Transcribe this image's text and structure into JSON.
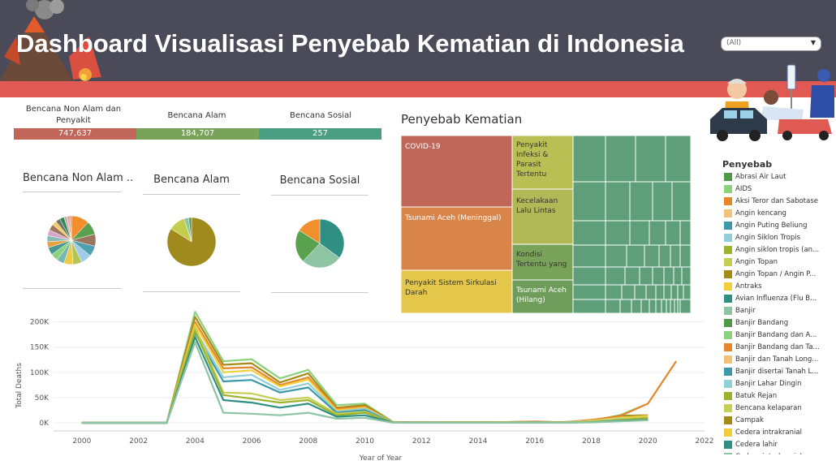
{
  "header": {
    "title": "Dashboard Visualisasi Penyebab Kematian di Indonesia",
    "filter_value": "(All)"
  },
  "kpis": [
    {
      "label": "Bencana Non Alam dan Penyakit",
      "value": "747,637",
      "color": "#c0675a"
    },
    {
      "label": "Bencana Alam",
      "value": "184,707",
      "color": "#7aa35a"
    },
    {
      "label": "Bencana Sosial",
      "value": "257",
      "color": "#4a9e82"
    }
  ],
  "pies": [
    {
      "title": "Bencana Non Alam ..",
      "slices": [
        12,
        9,
        8,
        7,
        7,
        6,
        6,
        5,
        5,
        5,
        4,
        4,
        4,
        4,
        3,
        3,
        3,
        2,
        2,
        1
      ],
      "colors": [
        "#f28e2b",
        "#59a14f",
        "#9c755f",
        "#4e9fb0",
        "#a0cbe8",
        "#b5c45a",
        "#edc948",
        "#76b7b2",
        "#8cd17d",
        "#499894",
        "#e6a23c",
        "#86bcb6",
        "#d4a6c8",
        "#9d7660",
        "#f1ce63",
        "#79706e",
        "#2e8b57",
        "#bab0ac",
        "#ff9d9a",
        "#d37295"
      ]
    },
    {
      "title": "Bencana Alam",
      "slices": [
        84,
        11,
        3,
        2
      ],
      "colors": [
        "#a08a1e",
        "#c3cf4c",
        "#8cc4a4",
        "#59a14f"
      ]
    },
    {
      "title": "Bencana Sosial",
      "slices": [
        35,
        27,
        22,
        16
      ],
      "colors": [
        "#2e8f82",
        "#8cc4a4",
        "#59a14f",
        "#f28e2b"
      ]
    }
  ],
  "treemap": {
    "title": "Penyebab Kematian",
    "labels": {
      "covid": "COVID-19",
      "tsunami": "Tsunami Aceh (Meninggal)",
      "sirkulasi": "Penyakit Sistem Sirkulasi Darah",
      "infeksi": "Penyakit Infeksi & Parasit Tertentu",
      "kecelakaan": "Kecelakaan Lalu Lintas",
      "kondisi": "Kondisi Tertentu yang",
      "hilang": "Tsunami Aceh (Hilang)"
    },
    "colors": {
      "covid": "#c0675a",
      "tsunami": "#d9854a",
      "sirkulasi": "#e3c64a",
      "infeksi": "#b9bf52",
      "kecelakaan": "#b0b955",
      "kondisi": "#7aa35a",
      "hilang": "#6e9c5a",
      "rest": "#5e9e78"
    }
  },
  "legend": {
    "title": "Penyebab",
    "items": [
      {
        "label": "Abrasi Air Laut",
        "color": "#4e9a45"
      },
      {
        "label": "AIDS",
        "color": "#8cd17d"
      },
      {
        "label": "Aksi Teror dan Sabotase",
        "color": "#e6862b"
      },
      {
        "label": "Angin kencang",
        "color": "#f0c27a"
      },
      {
        "label": "Angin Puting Beliung",
        "color": "#3a98a8"
      },
      {
        "label": "Angin Siklon Tropis",
        "color": "#92cfd8"
      },
      {
        "label": "Angin siklon tropis (an...",
        "color": "#9bb32e"
      },
      {
        "label": "Angin Topan",
        "color": "#c6cf55"
      },
      {
        "label": "Angin Topan / Angin P...",
        "color": "#a48b15"
      },
      {
        "label": "Antraks",
        "color": "#f1cf3b"
      },
      {
        "label": "Avian Influenza (Flu B...",
        "color": "#2e8f82"
      },
      {
        "label": "Banjir",
        "color": "#8cc4a4"
      },
      {
        "label": "Banjir Bandang",
        "color": "#4e9a45"
      },
      {
        "label": "Banjir Bandang dan A...",
        "color": "#8cd17d"
      },
      {
        "label": "Banjir Bandang dan Ta...",
        "color": "#e6862b"
      },
      {
        "label": "Banjir dan Tanah Long...",
        "color": "#f0c27a"
      },
      {
        "label": "Banjir disertai Tanah L...",
        "color": "#3a98a8"
      },
      {
        "label": "Banjir Lahar Dingin",
        "color": "#92cfd8"
      },
      {
        "label": "Batuk Rejan",
        "color": "#9bb32e"
      },
      {
        "label": "Bencana kelaparan",
        "color": "#c6cf55"
      },
      {
        "label": "Campak",
        "color": "#a48b15"
      },
      {
        "label": "Cedera intrakranial",
        "color": "#f1cf3b"
      },
      {
        "label": "Cedera lahir",
        "color": "#2e8f82"
      },
      {
        "label": "Cedera intrakranial",
        "color": "#8cc4a4"
      }
    ]
  },
  "chart_data": {
    "type": "line",
    "xlabel": "Year of Year",
    "ylabel": "Total Deaths",
    "xlim": [
      1999,
      2022
    ],
    "ylim": [
      0,
      230000
    ],
    "x_ticks": [
      2000,
      2002,
      2004,
      2006,
      2008,
      2010,
      2012,
      2014,
      2016,
      2018,
      2020,
      2022
    ],
    "y_ticks": [
      {
        "v": 0,
        "label": "0K"
      },
      {
        "v": 50000,
        "label": "50K"
      },
      {
        "v": 100000,
        "label": "100K"
      },
      {
        "v": 150000,
        "label": "150K"
      },
      {
        "v": 200000,
        "label": "200K"
      }
    ],
    "x": [
      2000,
      2001,
      2002,
      2003,
      2004,
      2005,
      2006,
      2007,
      2008,
      2009,
      2010,
      2011,
      2012,
      2013,
      2014,
      2015,
      2016,
      2017,
      2018,
      2019,
      2020,
      2021
    ],
    "series": [
      {
        "color": "#8cd17d",
        "values": [
          0,
          0,
          0,
          0,
          220000,
          122000,
          126000,
          88000,
          105000,
          35000,
          38000,
          1500,
          1000,
          1000,
          1000,
          1500,
          2000,
          1500,
          4000,
          15000,
          38000,
          null
        ]
      },
      {
        "color": "#a48b15",
        "values": [
          0,
          0,
          0,
          0,
          210000,
          115000,
          118000,
          80000,
          98000,
          30000,
          35000,
          1000,
          1000,
          1000,
          1000,
          1500,
          2000,
          1000,
          5000,
          14000,
          15000,
          null
        ]
      },
      {
        "color": "#e6862b",
        "values": [
          0,
          0,
          0,
          0,
          200000,
          108000,
          110000,
          75000,
          90000,
          28000,
          32000,
          1000,
          800,
          800,
          1000,
          1500,
          2500,
          1000,
          6000,
          13000,
          38000,
          122000
        ]
      },
      {
        "color": "#f1cf3b",
        "values": [
          0,
          0,
          0,
          0,
          195000,
          100000,
          104000,
          72000,
          86000,
          25000,
          30000,
          800,
          600,
          800,
          800,
          1000,
          1500,
          800,
          4000,
          10000,
          14000,
          null
        ]
      },
      {
        "color": "#92cfd8",
        "values": [
          0,
          0,
          0,
          0,
          185000,
          90000,
          95000,
          65000,
          78000,
          22000,
          28000,
          600,
          500,
          600,
          600,
          800,
          1000,
          600,
          3000,
          8000,
          10000,
          null
        ]
      },
      {
        "color": "#3a98a8",
        "values": [
          0,
          0,
          0,
          0,
          178000,
          82000,
          85000,
          60000,
          70000,
          20000,
          25000,
          500,
          400,
          500,
          500,
          700,
          800,
          500,
          2000,
          6000,
          8000,
          null
        ]
      },
      {
        "color": "#c6cf55",
        "values": [
          0,
          0,
          0,
          0,
          190000,
          60000,
          58000,
          45000,
          50000,
          18000,
          22000,
          400,
          300,
          400,
          400,
          600,
          700,
          400,
          2500,
          7000,
          12000,
          null
        ]
      },
      {
        "color": "#9bb32e",
        "values": [
          0,
          0,
          0,
          0,
          182000,
          55000,
          48000,
          40000,
          45000,
          15000,
          20000,
          300,
          300,
          300,
          300,
          500,
          600,
          300,
          1500,
          5000,
          9000,
          null
        ]
      },
      {
        "color": "#2e8f82",
        "values": [
          0,
          0,
          0,
          0,
          170000,
          45000,
          40000,
          30000,
          38000,
          12000,
          15000,
          300,
          200,
          300,
          300,
          400,
          500,
          300,
          1200,
          4000,
          6000,
          null
        ]
      },
      {
        "color": "#8cc4a4",
        "values": [
          0,
          0,
          0,
          0,
          160000,
          20000,
          18000,
          15000,
          20000,
          8000,
          10000,
          200,
          200,
          200,
          200,
          300,
          300,
          200,
          800,
          3000,
          5000,
          null
        ]
      }
    ]
  }
}
